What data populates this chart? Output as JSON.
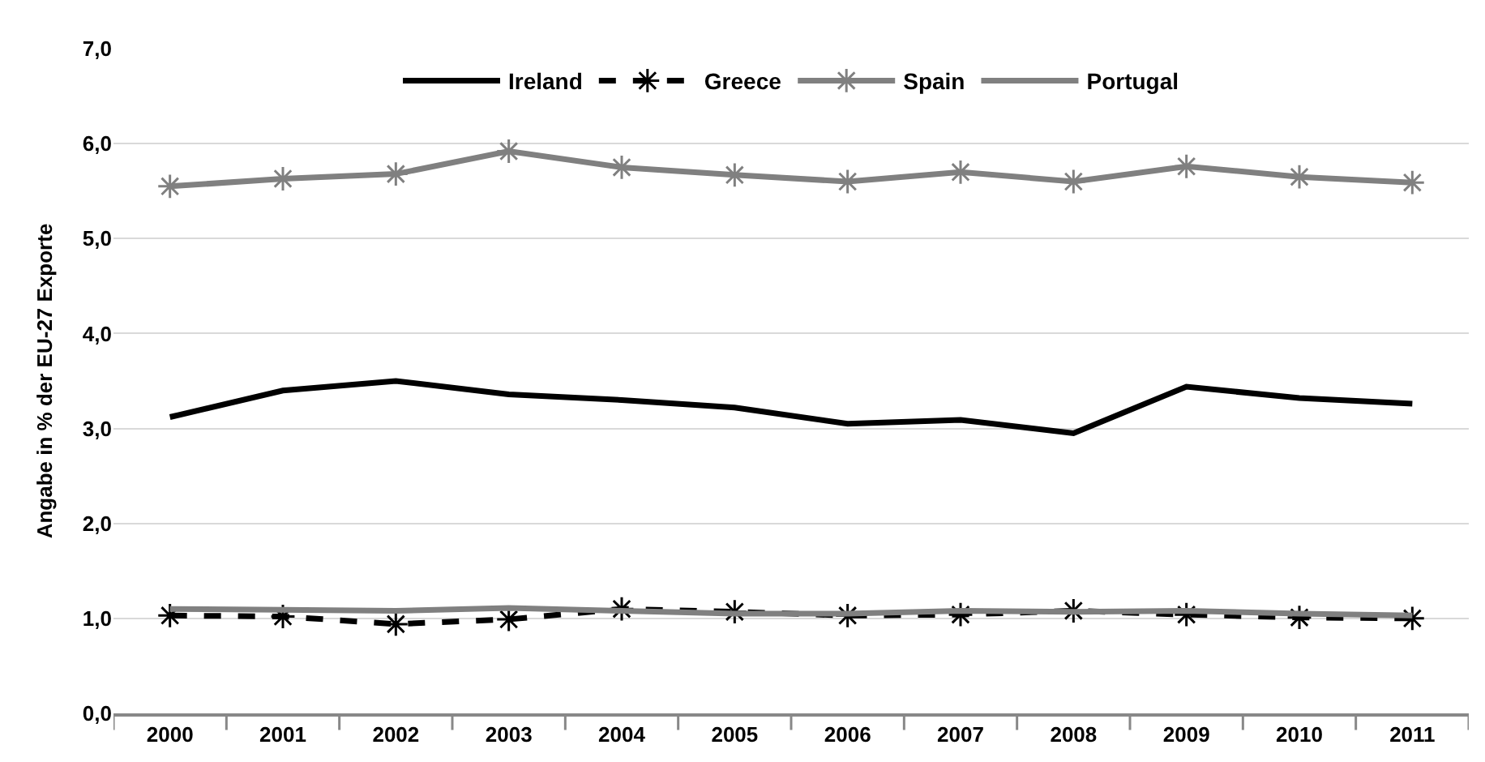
{
  "chart_data": {
    "type": "line",
    "ylabel": "Angabe in % der EU-27 Exporte",
    "categories": [
      "2000",
      "2001",
      "2002",
      "2003",
      "2004",
      "2005",
      "2006",
      "2007",
      "2008",
      "2009",
      "2010",
      "2011"
    ],
    "series": [
      {
        "name": "Ireland",
        "color": "#000000",
        "line_style": "solid",
        "marker": "none",
        "values": [
          3.12,
          3.4,
          3.5,
          3.36,
          3.3,
          3.22,
          3.05,
          3.09,
          2.95,
          3.44,
          3.32,
          3.26
        ]
      },
      {
        "name": "Greece",
        "color": "#000000",
        "line_style": "dashed",
        "marker": "cross",
        "values": [
          1.03,
          1.02,
          0.94,
          0.99,
          1.1,
          1.07,
          1.03,
          1.04,
          1.08,
          1.04,
          1.01,
          1.0
        ]
      },
      {
        "name": "Spain",
        "color": "#808080",
        "line_style": "solid",
        "marker": "cross",
        "values": [
          5.55,
          5.63,
          5.68,
          5.92,
          5.75,
          5.67,
          5.6,
          5.7,
          5.6,
          5.76,
          5.65,
          5.59
        ]
      },
      {
        "name": "Portugal",
        "color": "#808080",
        "line_style": "solid",
        "marker": "none",
        "values": [
          1.1,
          1.09,
          1.08,
          1.11,
          1.08,
          1.05,
          1.05,
          1.08,
          1.07,
          1.08,
          1.05,
          1.03
        ]
      }
    ],
    "ylim": [
      0,
      7
    ],
    "yticks": [
      {
        "value": 0,
        "label": "0,0"
      },
      {
        "value": 1,
        "label": "1,0"
      },
      {
        "value": 2,
        "label": "2,0"
      },
      {
        "value": 3,
        "label": "3,0"
      },
      {
        "value": 4,
        "label": "4,0"
      },
      {
        "value": 5,
        "label": "5,0"
      },
      {
        "value": 6,
        "label": "6,0"
      },
      {
        "value": 7,
        "label": "7,0"
      }
    ],
    "grid": "y",
    "legend": "top"
  }
}
